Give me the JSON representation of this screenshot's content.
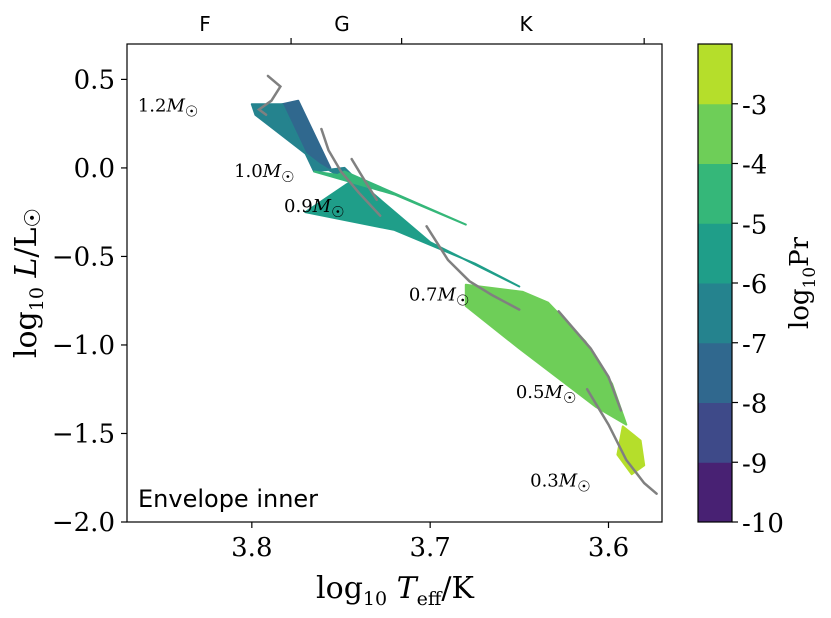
{
  "chart_data": {
    "type": "heatmap",
    "panel_label": "Envelope inner",
    "xlabel": "log10 Teff/K",
    "ylabel": "log10 L/L☉",
    "xlim": [
      3.87,
      3.57
    ],
    "ylim": [
      -2.0,
      0.7
    ],
    "x_ticks": [
      3.8,
      3.7,
      3.6
    ],
    "x_tick_labels": [
      "3.8",
      "3.7",
      "3.6"
    ],
    "y_ticks": [
      0.5,
      0.0,
      -0.5,
      -1.0,
      -1.5,
      -2.0
    ],
    "y_tick_labels": [
      "0.5",
      "0.0",
      "−0.5",
      "−1.0",
      "−1.5",
      "−2.0"
    ],
    "spectral_types": [
      {
        "label": "F",
        "boundary_logT": null
      },
      {
        "label": "G",
        "boundary_logT": 3.778
      },
      {
        "label": "K",
        "boundary_logT": 3.716
      }
    ],
    "spectral_boundaries_logT": [
      3.778,
      3.716,
      3.58
    ],
    "colorbar": {
      "label": "log10Pr",
      "levels": [
        -10,
        -9,
        -8,
        -7,
        -6,
        -5,
        -4,
        -3
      ],
      "tick_labels": [
        "-10",
        "-9",
        "-8",
        "-7",
        "-6",
        "-5",
        "-4",
        "-3"
      ],
      "colors": [
        "#482173",
        "#3e4a89",
        "#30688e",
        "#25838e",
        "#1f9e89",
        "#35b779",
        "#6ece58",
        "#b5de2b"
      ]
    },
    "regions": [
      {
        "name": "band-8-7",
        "value": -7.5,
        "color": "#30688e",
        "points": [
          [
            3.783,
            0.36
          ],
          [
            3.774,
            0.38
          ],
          [
            3.756,
            0.0
          ],
          [
            3.765,
            -0.02
          ]
        ]
      },
      {
        "name": "band-7-6",
        "value": -6.5,
        "color": "#25838e",
        "points": [
          [
            3.8,
            0.36
          ],
          [
            3.783,
            0.36
          ],
          [
            3.765,
            -0.02
          ],
          [
            3.748,
            0.0
          ],
          [
            3.742,
            -0.06
          ],
          [
            3.752,
            -0.04
          ],
          [
            3.762,
            0.02
          ],
          [
            3.798,
            0.3
          ]
        ]
      },
      {
        "name": "band-6-5",
        "value": -5.5,
        "color": "#1f9e89",
        "points": [
          [
            3.742,
            -0.06
          ],
          [
            3.77,
            -0.25
          ],
          [
            3.72,
            -0.35
          ],
          [
            3.675,
            -0.54
          ],
          [
            3.65,
            -0.67
          ],
          [
            3.7,
            -0.42
          ]
        ]
      },
      {
        "name": "band-5-4",
        "value": -4.5,
        "color": "#35b779",
        "points": [
          [
            3.765,
            -0.02
          ],
          [
            3.752,
            -0.04
          ],
          [
            3.748,
            -0.02
          ],
          [
            3.68,
            -0.32
          ],
          [
            3.72,
            -0.15
          ]
        ]
      },
      {
        "name": "band-4-3",
        "value": -3.5,
        "color": "#6ece58",
        "points": [
          [
            3.68,
            -0.66
          ],
          [
            3.648,
            -0.7
          ],
          [
            3.634,
            -0.76
          ],
          [
            3.613,
            -0.98
          ],
          [
            3.598,
            -1.22
          ],
          [
            3.59,
            -1.45
          ],
          [
            3.607,
            -1.35
          ],
          [
            3.62,
            -1.25
          ],
          [
            3.65,
            -1.02
          ],
          [
            3.68,
            -0.78
          ]
        ]
      },
      {
        "name": "band-3",
        "value": -3.0,
        "color": "#b5de2b",
        "points": [
          [
            3.592,
            -1.46
          ],
          [
            3.582,
            -1.54
          ],
          [
            3.58,
            -1.68
          ],
          [
            3.587,
            -1.73
          ],
          [
            3.595,
            -1.62
          ]
        ]
      }
    ],
    "tracks": [
      {
        "mass_label": "1.2M☉",
        "label_logT": 3.83,
        "label_logL": 0.32,
        "points": [
          [
            3.791,
            0.52
          ],
          [
            3.784,
            0.46
          ],
          [
            3.789,
            0.38
          ],
          [
            3.796,
            0.33
          ],
          [
            3.792,
            0.3
          ]
        ]
      },
      {
        "mass_label": "1.0M☉",
        "label_logT": 3.776,
        "label_logL": -0.05,
        "points": [
          [
            3.761,
            0.22
          ],
          [
            3.757,
            0.1
          ],
          [
            3.75,
            -0.02
          ],
          [
            3.74,
            -0.14
          ],
          [
            3.728,
            -0.27
          ]
        ]
      },
      {
        "mass_label": "0.9M☉",
        "label_logT": 3.748,
        "label_logL": -0.25,
        "points": [
          [
            3.744,
            0.05
          ],
          [
            3.738,
            -0.05
          ],
          [
            3.73,
            -0.18
          ]
        ]
      },
      {
        "mass_label": "0.7M☉",
        "label_logT": 3.678,
        "label_logL": -0.75,
        "points": [
          [
            3.702,
            -0.33
          ],
          [
            3.69,
            -0.52
          ],
          [
            3.678,
            -0.64
          ],
          [
            3.665,
            -0.72
          ],
          [
            3.65,
            -0.8
          ]
        ]
      },
      {
        "mass_label": "0.5M☉",
        "label_logT": 3.618,
        "label_logL": -1.3,
        "points": [
          [
            3.628,
            -0.81
          ],
          [
            3.61,
            -1.02
          ],
          [
            3.6,
            -1.18
          ],
          [
            3.593,
            -1.37
          ]
        ]
      },
      {
        "mass_label": "0.3M☉",
        "label_logT": 3.61,
        "label_logL": -1.8,
        "points": [
          [
            3.612,
            -1.25
          ],
          [
            3.6,
            -1.45
          ],
          [
            3.59,
            -1.65
          ],
          [
            3.58,
            -1.78
          ],
          [
            3.573,
            -1.84
          ]
        ]
      }
    ]
  }
}
